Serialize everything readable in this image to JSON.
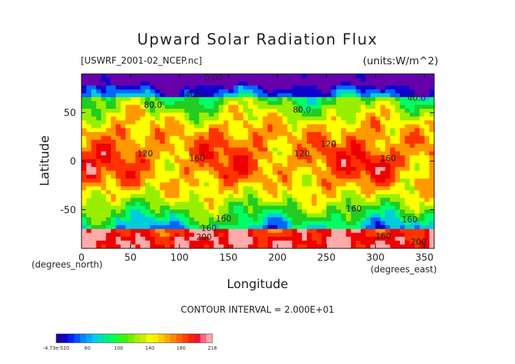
{
  "chart_data": {
    "type": "heatmap",
    "title": "Upward Solar Radiation Flux",
    "subtitle": "[USWRF_2001-02_NCEP.nc]",
    "units": "(units:W/m^2)",
    "xlabel": "Longitude",
    "ylabel": "Latitude",
    "x_unit_label": "(degrees_east)",
    "y_unit_label": "(degrees_north)",
    "xlim": [
      0,
      360
    ],
    "ylim": [
      -90,
      90
    ],
    "x_ticks": [
      0,
      50,
      100,
      150,
      200,
      250,
      300,
      350
    ],
    "y_ticks": [
      50,
      0,
      -50
    ],
    "contour_interval": "CONTOUR INTERVAL = 2.000E+01",
    "contour_labels": [
      {
        "text": "0.00",
        "x": 135,
        "y": 83
      },
      {
        "text": "40.0",
        "x": 115,
        "y": 66
      },
      {
        "text": "40.0",
        "x": 342,
        "y": 62
      },
      {
        "text": "80.0",
        "x": 73,
        "y": 55
      },
      {
        "text": "80.0",
        "x": 225,
        "y": 50
      },
      {
        "text": "120",
        "x": 65,
        "y": 5
      },
      {
        "text": "120",
        "x": 225,
        "y": 5
      },
      {
        "text": "120",
        "x": 252,
        "y": 15
      },
      {
        "text": "160",
        "x": 118,
        "y": 0
      },
      {
        "text": "160",
        "x": 313,
        "y": 0
      },
      {
        "text": "160",
        "x": 278,
        "y": -52
      },
      {
        "text": "160",
        "x": 145,
        "y": -62
      },
      {
        "text": "160",
        "x": 130,
        "y": -72
      },
      {
        "text": "160",
        "x": 335,
        "y": -63
      },
      {
        "text": "160",
        "x": 308,
        "y": -80
      },
      {
        "text": "200",
        "x": 125,
        "y": -81
      },
      {
        "text": "200",
        "x": 344,
        "y": -86
      }
    ],
    "levels": [
      {
        "value": "0",
        "color": "#6600aa"
      },
      {
        "value": "20",
        "color": "#1100cc"
      },
      {
        "value": "40",
        "color": "#0066ff"
      },
      {
        "value": "60",
        "color": "#00ccdd"
      },
      {
        "value": "80",
        "color": "#00ff66"
      },
      {
        "value": "100",
        "color": "#22cc22"
      },
      {
        "value": "120",
        "color": "#99ee00"
      },
      {
        "value": "140",
        "color": "#ffff00"
      },
      {
        "value": "160",
        "color": "#ff9900"
      },
      {
        "value": "180",
        "color": "#ff3300"
      },
      {
        "value": "200",
        "color": "#ee0000"
      },
      {
        "value": "218",
        "color": "#ffaaaa"
      }
    ],
    "colorbar_labels": [
      "-4.73e-520",
      "60",
      "100",
      "140",
      "180",
      "218"
    ],
    "colorbar_colors": [
      "#1a0099",
      "#1100cc",
      "#0022ff",
      "#0055ff",
      "#0088ff",
      "#00aaff",
      "#00ccee",
      "#00ddbb",
      "#00ee88",
      "#00ff55",
      "#22ff22",
      "#44ee11",
      "#77ee00",
      "#aaee00",
      "#ccee00",
      "#eeff00",
      "#ffee00",
      "#ffcc00",
      "#ffaa00",
      "#ff8800",
      "#ff6600",
      "#ff4400",
      "#ff2200",
      "#ee1133",
      "#ff6688",
      "#ffaaaa"
    ]
  }
}
